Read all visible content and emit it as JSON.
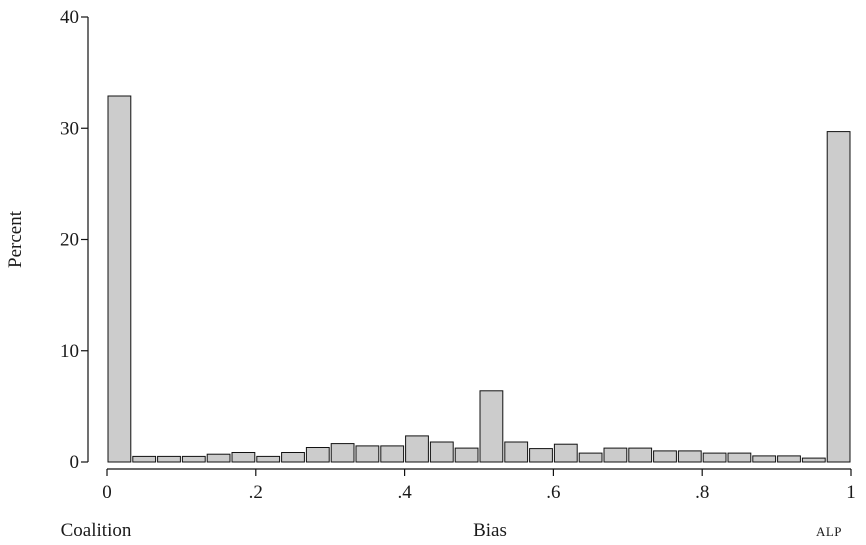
{
  "chart_data": {
    "type": "bar",
    "xlabel": "Bias",
    "ylabel": "Percent",
    "x_ticks": [
      {
        "value": 0,
        "label": "0"
      },
      {
        "value": 0.2,
        "label": ".2"
      },
      {
        "value": 0.4,
        "label": ".4"
      },
      {
        "value": 0.6,
        "label": ".6"
      },
      {
        "value": 0.8,
        "label": ".8"
      },
      {
        "value": 1,
        "label": "1"
      }
    ],
    "y_ticks": [
      {
        "value": 0,
        "label": "0"
      },
      {
        "value": 10,
        "label": "10"
      },
      {
        "value": 20,
        "label": "20"
      },
      {
        "value": 30,
        "label": "30"
      },
      {
        "value": 40,
        "label": "40"
      }
    ],
    "left_note": "Coalition",
    "right_note": "ALP",
    "xlim": [
      0,
      1
    ],
    "ylim": [
      0,
      40
    ],
    "bin_width": 0.0333,
    "bins": [
      {
        "x": 0.0,
        "value": 32.9
      },
      {
        "x": 0.0333,
        "value": 0.5
      },
      {
        "x": 0.0667,
        "value": 0.5
      },
      {
        "x": 0.1,
        "value": 0.5
      },
      {
        "x": 0.1333,
        "value": 0.7
      },
      {
        "x": 0.1667,
        "value": 0.85
      },
      {
        "x": 0.2,
        "value": 0.5
      },
      {
        "x": 0.2333,
        "value": 0.85
      },
      {
        "x": 0.2667,
        "value": 1.3
      },
      {
        "x": 0.3,
        "value": 1.65
      },
      {
        "x": 0.3333,
        "value": 1.45
      },
      {
        "x": 0.3667,
        "value": 1.45
      },
      {
        "x": 0.4,
        "value": 2.35
      },
      {
        "x": 0.4333,
        "value": 1.8
      },
      {
        "x": 0.4667,
        "value": 1.25
      },
      {
        "x": 0.5,
        "value": 6.4
      },
      {
        "x": 0.5333,
        "value": 1.8
      },
      {
        "x": 0.5667,
        "value": 1.2
      },
      {
        "x": 0.6,
        "value": 1.6
      },
      {
        "x": 0.6333,
        "value": 0.8
      },
      {
        "x": 0.6667,
        "value": 1.25
      },
      {
        "x": 0.7,
        "value": 1.25
      },
      {
        "x": 0.7333,
        "value": 1.0
      },
      {
        "x": 0.7667,
        "value": 1.0
      },
      {
        "x": 0.8,
        "value": 0.8
      },
      {
        "x": 0.8333,
        "value": 0.8
      },
      {
        "x": 0.8667,
        "value": 0.55
      },
      {
        "x": 0.9,
        "value": 0.55
      },
      {
        "x": 0.9333,
        "value": 0.35
      },
      {
        "x": 0.9667,
        "value": 29.7
      }
    ],
    "grid": false,
    "bar_fill": "#cccccc",
    "bar_stroke": "#111111"
  }
}
